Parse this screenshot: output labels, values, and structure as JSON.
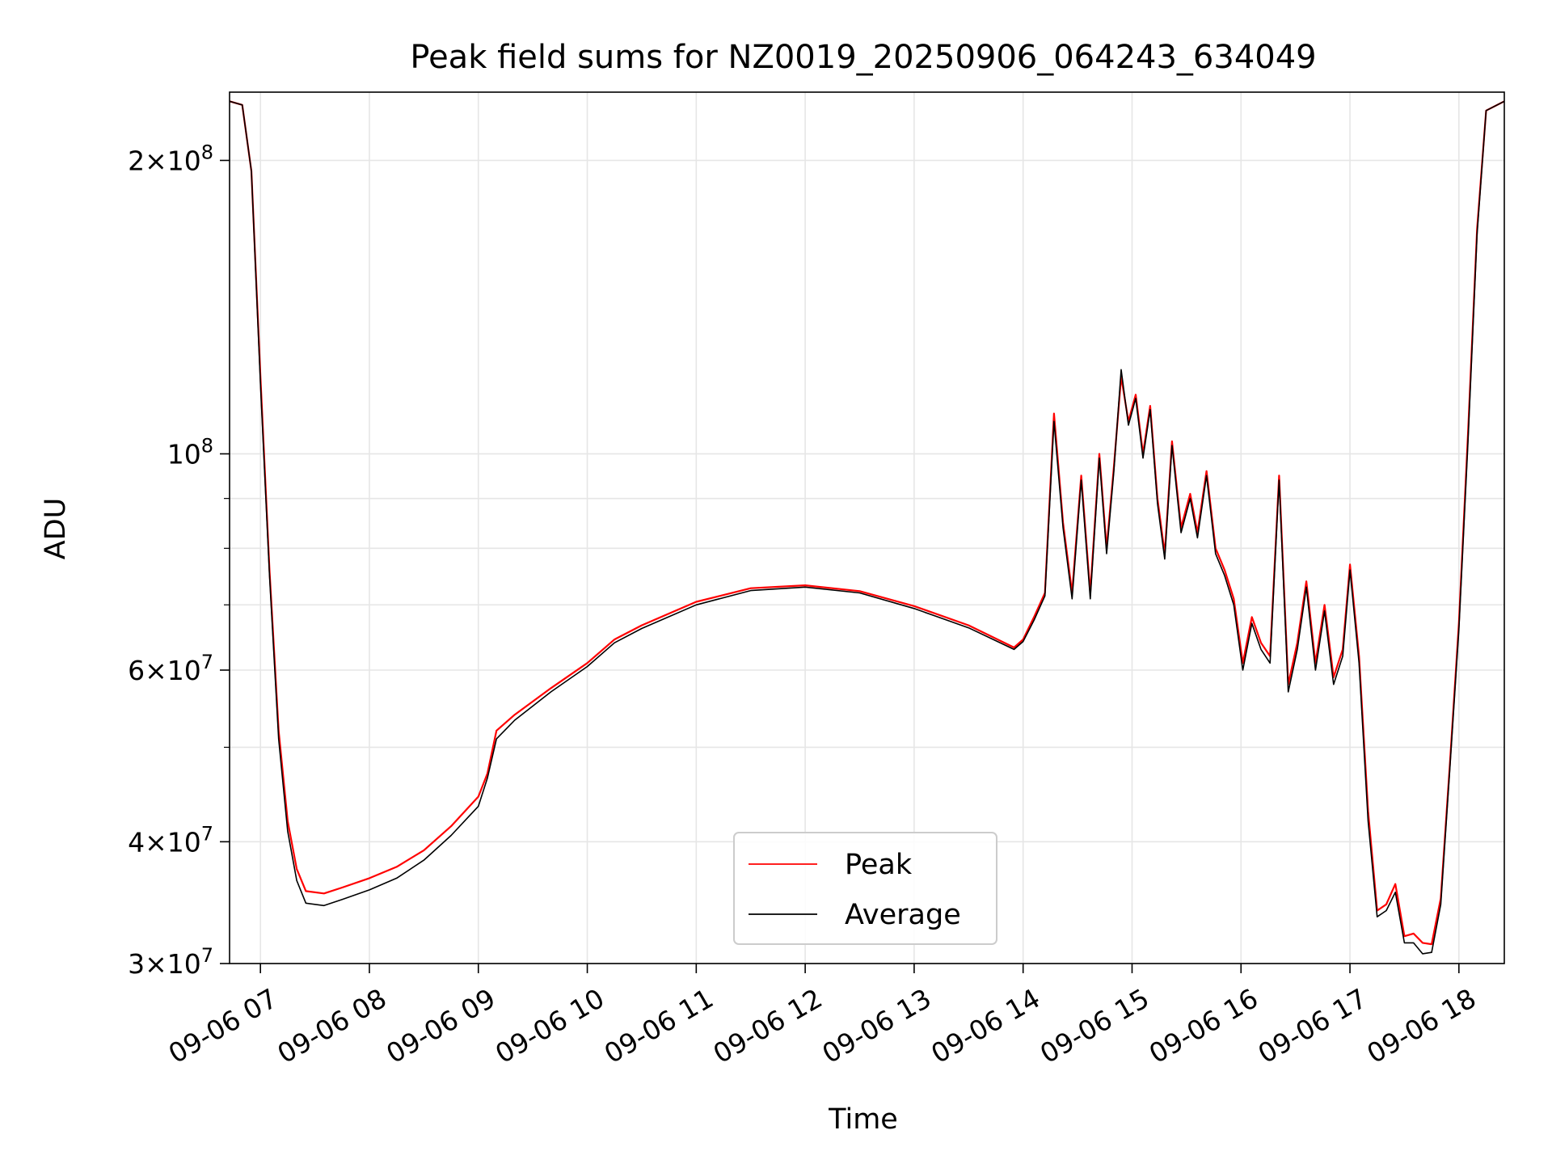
{
  "chart_data": {
    "type": "line",
    "title": "Peak field sums for NZ0019_20250906_064243_634049",
    "xlabel": "Time",
    "ylabel": "ADU",
    "y_scale": "log",
    "ylim": [
      30000000,
      235000000
    ],
    "xlim": [
      "2025-09-06 06:43",
      "2025-09-06 18:25"
    ],
    "x_ticks": [
      {
        "x": "2025-09-06 07:00",
        "label": "09-06 07"
      },
      {
        "x": "2025-09-06 08:00",
        "label": "09-06 08"
      },
      {
        "x": "2025-09-06 09:00",
        "label": "09-06 09"
      },
      {
        "x": "2025-09-06 10:00",
        "label": "09-06 10"
      },
      {
        "x": "2025-09-06 11:00",
        "label": "09-06 11"
      },
      {
        "x": "2025-09-06 12:00",
        "label": "09-06 12"
      },
      {
        "x": "2025-09-06 13:00",
        "label": "09-06 13"
      },
      {
        "x": "2025-09-06 14:00",
        "label": "09-06 14"
      },
      {
        "x": "2025-09-06 15:00",
        "label": "09-06 15"
      },
      {
        "x": "2025-09-06 16:00",
        "label": "09-06 16"
      },
      {
        "x": "2025-09-06 17:00",
        "label": "09-06 17"
      },
      {
        "x": "2025-09-06 18:00",
        "label": "09-06 18"
      }
    ],
    "y_major_ticks": [
      {
        "y": 30000000,
        "mant": "3",
        "exp": "7"
      },
      {
        "y": 40000000,
        "mant": "4",
        "exp": "7"
      },
      {
        "y": 60000000,
        "mant": "6",
        "exp": "7"
      },
      {
        "y": 100000000,
        "mant": "",
        "exp": "8"
      },
      {
        "y": 200000000,
        "mant": "2",
        "exp": "8"
      }
    ],
    "y_minor_ticks": [
      50000000,
      70000000,
      80000000,
      90000000
    ],
    "grid": true,
    "legend": {
      "position": "lower center",
      "entries": [
        "Peak",
        "Average"
      ]
    },
    "series": [
      {
        "name": "Peak",
        "color": "#ff0000",
        "points": [
          [
            "2025-09-06 06:43",
            230000000
          ],
          [
            "2025-09-06 06:50",
            228000000
          ],
          [
            "2025-09-06 06:55",
            195000000
          ],
          [
            "2025-09-06 07:00",
            120000000
          ],
          [
            "2025-09-06 07:05",
            76000000
          ],
          [
            "2025-09-06 07:10",
            52000000
          ],
          [
            "2025-09-06 07:15",
            42000000
          ],
          [
            "2025-09-06 07:20",
            37500000
          ],
          [
            "2025-09-06 07:25",
            35600000
          ],
          [
            "2025-09-06 07:35",
            35400000
          ],
          [
            "2025-09-06 07:45",
            35900000
          ],
          [
            "2025-09-06 08:00",
            36700000
          ],
          [
            "2025-09-06 08:15",
            37700000
          ],
          [
            "2025-09-06 08:30",
            39200000
          ],
          [
            "2025-09-06 08:45",
            41500000
          ],
          [
            "2025-09-06 09:00",
            44500000
          ],
          [
            "2025-09-06 09:05",
            47000000
          ],
          [
            "2025-09-06 09:10",
            52000000
          ],
          [
            "2025-09-06 09:20",
            54000000
          ],
          [
            "2025-09-06 09:40",
            57500000
          ],
          [
            "2025-09-06 10:00",
            61000000
          ],
          [
            "2025-09-06 10:15",
            64500000
          ],
          [
            "2025-09-06 10:30",
            66700000
          ],
          [
            "2025-09-06 11:00",
            70500000
          ],
          [
            "2025-09-06 11:30",
            72800000
          ],
          [
            "2025-09-06 12:00",
            73300000
          ],
          [
            "2025-09-06 12:30",
            72300000
          ],
          [
            "2025-09-06 13:00",
            69800000
          ],
          [
            "2025-09-06 13:30",
            66700000
          ],
          [
            "2025-09-06 13:55",
            63300000
          ],
          [
            "2025-09-06 14:00",
            64500000
          ],
          [
            "2025-09-06 14:06",
            68000000
          ],
          [
            "2025-09-06 14:12",
            72000000
          ],
          [
            "2025-09-06 14:17",
            110000000
          ],
          [
            "2025-09-06 14:22",
            85000000
          ],
          [
            "2025-09-06 14:27",
            72000000
          ],
          [
            "2025-09-06 14:32",
            95000000
          ],
          [
            "2025-09-06 14:37",
            72000000
          ],
          [
            "2025-09-06 14:42",
            100000000
          ],
          [
            "2025-09-06 14:46",
            80000000
          ],
          [
            "2025-09-06 14:50",
            97000000
          ],
          [
            "2025-09-06 14:54",
            120000000
          ],
          [
            "2025-09-06 14:58",
            108000000
          ],
          [
            "2025-09-06 15:02",
            115000000
          ],
          [
            "2025-09-06 15:06",
            100000000
          ],
          [
            "2025-09-06 15:10",
            112000000
          ],
          [
            "2025-09-06 15:14",
            90000000
          ],
          [
            "2025-09-06 15:18",
            79000000
          ],
          [
            "2025-09-06 15:22",
            103000000
          ],
          [
            "2025-09-06 15:27",
            84000000
          ],
          [
            "2025-09-06 15:32",
            91000000
          ],
          [
            "2025-09-06 15:36",
            83000000
          ],
          [
            "2025-09-06 15:41",
            96000000
          ],
          [
            "2025-09-06 15:46",
            80000000
          ],
          [
            "2025-09-06 15:51",
            76000000
          ],
          [
            "2025-09-06 15:56",
            71000000
          ],
          [
            "2025-09-06 16:01",
            61000000
          ],
          [
            "2025-09-06 16:06",
            68000000
          ],
          [
            "2025-09-06 16:11",
            64000000
          ],
          [
            "2025-09-06 16:16",
            62000000
          ],
          [
            "2025-09-06 16:21",
            95000000
          ],
          [
            "2025-09-06 16:26",
            58000000
          ],
          [
            "2025-09-06 16:31",
            64000000
          ],
          [
            "2025-09-06 16:36",
            74000000
          ],
          [
            "2025-09-06 16:41",
            61000000
          ],
          [
            "2025-09-06 16:46",
            70000000
          ],
          [
            "2025-09-06 16:51",
            59000000
          ],
          [
            "2025-09-06 16:56",
            63000000
          ],
          [
            "2025-09-06 17:00",
            77000000
          ],
          [
            "2025-09-06 17:05",
            62000000
          ],
          [
            "2025-09-06 17:10",
            43000000
          ],
          [
            "2025-09-06 17:15",
            34000000
          ],
          [
            "2025-09-06 17:20",
            34500000
          ],
          [
            "2025-09-06 17:25",
            36200000
          ],
          [
            "2025-09-06 17:30",
            32000000
          ],
          [
            "2025-09-06 17:35",
            32200000
          ],
          [
            "2025-09-06 17:40",
            31500000
          ],
          [
            "2025-09-06 17:45",
            31400000
          ],
          [
            "2025-09-06 17:50",
            35000000
          ],
          [
            "2025-09-06 17:55",
            48000000
          ],
          [
            "2025-09-06 18:00",
            67000000
          ],
          [
            "2025-09-06 18:05",
            105000000
          ],
          [
            "2025-09-06 18:10",
            170000000
          ],
          [
            "2025-09-06 18:15",
            225000000
          ],
          [
            "2025-09-06 18:25",
            230000000
          ]
        ]
      },
      {
        "name": "Average",
        "color": "#000000",
        "points": [
          [
            "2025-09-06 06:43",
            230000000
          ],
          [
            "2025-09-06 06:50",
            228000000
          ],
          [
            "2025-09-06 06:55",
            195000000
          ],
          [
            "2025-09-06 07:00",
            118000000
          ],
          [
            "2025-09-06 07:05",
            75000000
          ],
          [
            "2025-09-06 07:10",
            51000000
          ],
          [
            "2025-09-06 07:15",
            41000000
          ],
          [
            "2025-09-06 07:20",
            36500000
          ],
          [
            "2025-09-06 07:25",
            34600000
          ],
          [
            "2025-09-06 07:35",
            34400000
          ],
          [
            "2025-09-06 07:45",
            34900000
          ],
          [
            "2025-09-06 08:00",
            35700000
          ],
          [
            "2025-09-06 08:15",
            36700000
          ],
          [
            "2025-09-06 08:30",
            38300000
          ],
          [
            "2025-09-06 08:45",
            40600000
          ],
          [
            "2025-09-06 09:00",
            43500000
          ],
          [
            "2025-09-06 09:05",
            46500000
          ],
          [
            "2025-09-06 09:10",
            51000000
          ],
          [
            "2025-09-06 09:20",
            53300000
          ],
          [
            "2025-09-06 09:40",
            57000000
          ],
          [
            "2025-09-06 10:00",
            60500000
          ],
          [
            "2025-09-06 10:15",
            64000000
          ],
          [
            "2025-09-06 10:30",
            66200000
          ],
          [
            "2025-09-06 11:00",
            70000000
          ],
          [
            "2025-09-06 11:30",
            72400000
          ],
          [
            "2025-09-06 12:00",
            73000000
          ],
          [
            "2025-09-06 12:30",
            72000000
          ],
          [
            "2025-09-06 13:00",
            69400000
          ],
          [
            "2025-09-06 13:30",
            66300000
          ],
          [
            "2025-09-06 13:55",
            63000000
          ],
          [
            "2025-09-06 14:00",
            64200000
          ],
          [
            "2025-09-06 14:06",
            67500000
          ],
          [
            "2025-09-06 14:12",
            71500000
          ],
          [
            "2025-09-06 14:17",
            108000000
          ],
          [
            "2025-09-06 14:22",
            84000000
          ],
          [
            "2025-09-06 14:27",
            71000000
          ],
          [
            "2025-09-06 14:32",
            94000000
          ],
          [
            "2025-09-06 14:37",
            71000000
          ],
          [
            "2025-09-06 14:42",
            99000000
          ],
          [
            "2025-09-06 14:46",
            79000000
          ],
          [
            "2025-09-06 14:50",
            96000000
          ],
          [
            "2025-09-06 14:54",
            122000000
          ],
          [
            "2025-09-06 14:58",
            107000000
          ],
          [
            "2025-09-06 15:02",
            114000000
          ],
          [
            "2025-09-06 15:06",
            99000000
          ],
          [
            "2025-09-06 15:10",
            111000000
          ],
          [
            "2025-09-06 15:14",
            89000000
          ],
          [
            "2025-09-06 15:18",
            78000000
          ],
          [
            "2025-09-06 15:22",
            102000000
          ],
          [
            "2025-09-06 15:27",
            83000000
          ],
          [
            "2025-09-06 15:32",
            90000000
          ],
          [
            "2025-09-06 15:36",
            82000000
          ],
          [
            "2025-09-06 15:41",
            95000000
          ],
          [
            "2025-09-06 15:46",
            79000000
          ],
          [
            "2025-09-06 15:51",
            75000000
          ],
          [
            "2025-09-06 15:56",
            70000000
          ],
          [
            "2025-09-06 16:01",
            60000000
          ],
          [
            "2025-09-06 16:06",
            67000000
          ],
          [
            "2025-09-06 16:11",
            63000000
          ],
          [
            "2025-09-06 16:16",
            61000000
          ],
          [
            "2025-09-06 16:21",
            94000000
          ],
          [
            "2025-09-06 16:26",
            57000000
          ],
          [
            "2025-09-06 16:31",
            63000000
          ],
          [
            "2025-09-06 16:36",
            73000000
          ],
          [
            "2025-09-06 16:41",
            60000000
          ],
          [
            "2025-09-06 16:46",
            69000000
          ],
          [
            "2025-09-06 16:51",
            58000000
          ],
          [
            "2025-09-06 16:56",
            62000000
          ],
          [
            "2025-09-06 17:00",
            76000000
          ],
          [
            "2025-09-06 17:05",
            61000000
          ],
          [
            "2025-09-06 17:10",
            42000000
          ],
          [
            "2025-09-06 17:15",
            33500000
          ],
          [
            "2025-09-06 17:20",
            34000000
          ],
          [
            "2025-09-06 17:25",
            35500000
          ],
          [
            "2025-09-06 17:30",
            31500000
          ],
          [
            "2025-09-06 17:35",
            31500000
          ],
          [
            "2025-09-06 17:40",
            30700000
          ],
          [
            "2025-09-06 17:45",
            30800000
          ],
          [
            "2025-09-06 17:50",
            34500000
          ],
          [
            "2025-09-06 17:55",
            47500000
          ],
          [
            "2025-09-06 18:00",
            66000000
          ],
          [
            "2025-09-06 18:05",
            103000000
          ],
          [
            "2025-09-06 18:10",
            168000000
          ],
          [
            "2025-09-06 18:15",
            225000000
          ],
          [
            "2025-09-06 18:25",
            230000000
          ]
        ]
      }
    ]
  }
}
